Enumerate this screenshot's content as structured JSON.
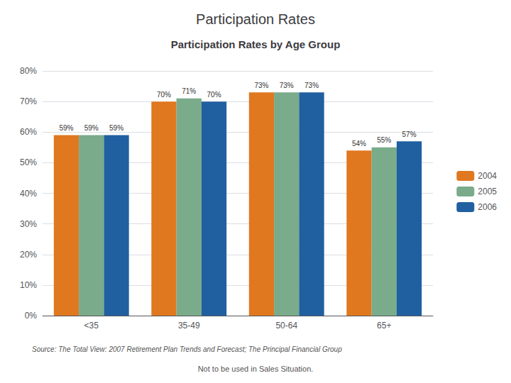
{
  "chart_data": {
    "type": "bar",
    "title": "Participation Rates",
    "subtitle": "Participation Rates by Age Group",
    "annotations": [
      "Source: The Total View: 2007 Retirement Plan Trends and Forecast; The Principal Financial Group",
      "Not to be used in Sales Situation."
    ],
    "categories": [
      "<35",
      "35-49",
      "50-64",
      "65+"
    ],
    "series": [
      {
        "name": "2004",
        "color": "#e07820",
        "values": [
          59,
          70,
          73,
          54
        ],
        "value_labels": [
          "59%",
          "70%",
          "73%",
          "54%"
        ]
      },
      {
        "name": "2005",
        "color": "#7aab8a",
        "values": [
          59,
          71,
          73,
          55
        ],
        "value_labels": [
          "59%",
          "71%",
          "73%",
          "55%"
        ]
      },
      {
        "name": "2006",
        "color": "#2060a0",
        "values": [
          59,
          70,
          73,
          57
        ],
        "value_labels": [
          "59%",
          "70%",
          "73%",
          "57%"
        ]
      }
    ],
    "ylim": [
      0,
      80
    ],
    "yticks": [
      {
        "value": 0,
        "label": "0%"
      },
      {
        "value": 10,
        "label": "10%"
      },
      {
        "value": 20,
        "label": "20%"
      },
      {
        "value": 30,
        "label": "30%"
      },
      {
        "value": 40,
        "label": "40%"
      },
      {
        "value": 50,
        "label": "50%"
      },
      {
        "value": 60,
        "label": "60%"
      },
      {
        "value": 70,
        "label": "70%"
      },
      {
        "value": 80,
        "label": "80%"
      }
    ],
    "grid": true,
    "legend": "right",
    "data_labels": true
  }
}
